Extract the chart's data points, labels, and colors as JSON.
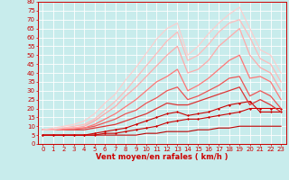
{
  "background_color": "#c8ecec",
  "grid_color": "#ffffff",
  "xlabel": "Vent moyen/en rafales ( km/h )",
  "xlabel_color": "#cc0000",
  "xlabel_fontsize": 6,
  "tick_color": "#cc0000",
  "tick_fontsize": 5,
  "xlim": [
    -0.5,
    23.5
  ],
  "ylim": [
    0,
    80
  ],
  "yticks": [
    0,
    5,
    10,
    15,
    20,
    25,
    30,
    35,
    40,
    45,
    50,
    55,
    60,
    65,
    70,
    75,
    80
  ],
  "xticks": [
    0,
    1,
    2,
    3,
    4,
    5,
    6,
    7,
    8,
    9,
    10,
    11,
    12,
    13,
    14,
    15,
    16,
    17,
    18,
    19,
    20,
    21,
    22,
    23
  ],
  "lines": [
    {
      "x": [
        0,
        1,
        2,
        3,
        4,
        5,
        6,
        7,
        8,
        9,
        10,
        11,
        12,
        13,
        14,
        15,
        16,
        17,
        18,
        19,
        20,
        21,
        22,
        23
      ],
      "y": [
        5,
        5,
        5,
        5,
        5,
        5,
        5,
        5,
        5,
        5,
        6,
        6,
        7,
        7,
        7,
        8,
        8,
        9,
        9,
        10,
        10,
        10,
        10,
        10
      ],
      "color": "#bb0000",
      "lw": 0.8,
      "marker": null,
      "ms": 0
    },
    {
      "x": [
        0,
        1,
        2,
        3,
        4,
        5,
        6,
        7,
        8,
        9,
        10,
        11,
        12,
        13,
        14,
        15,
        16,
        17,
        18,
        19,
        20,
        21,
        22,
        23
      ],
      "y": [
        5,
        5,
        5,
        5,
        5,
        5,
        6,
        6,
        7,
        8,
        9,
        10,
        12,
        13,
        14,
        14,
        15,
        16,
        17,
        18,
        20,
        20,
        20,
        20
      ],
      "color": "#cc0000",
      "lw": 0.8,
      "marker": "D",
      "ms": 1.5
    },
    {
      "x": [
        0,
        1,
        2,
        3,
        4,
        5,
        6,
        7,
        8,
        9,
        10,
        11,
        12,
        13,
        14,
        15,
        16,
        17,
        18,
        19,
        20,
        21,
        22,
        23
      ],
      "y": [
        5,
        5,
        5,
        5,
        5,
        6,
        7,
        8,
        9,
        11,
        13,
        15,
        17,
        18,
        16,
        17,
        18,
        20,
        22,
        23,
        24,
        18,
        18,
        18
      ],
      "color": "#cc0000",
      "lw": 0.8,
      "marker": "D",
      "ms": 1.5
    },
    {
      "x": [
        0,
        1,
        2,
        3,
        4,
        5,
        6,
        7,
        8,
        9,
        10,
        11,
        12,
        13,
        14,
        15,
        16,
        17,
        18,
        19,
        20,
        21,
        22,
        23
      ],
      "y": [
        8,
        8,
        8,
        8,
        8,
        9,
        10,
        11,
        13,
        15,
        17,
        20,
        23,
        22,
        22,
        24,
        26,
        28,
        30,
        32,
        22,
        25,
        22,
        18
      ],
      "color": "#dd3333",
      "lw": 0.9,
      "marker": null,
      "ms": 0
    },
    {
      "x": [
        0,
        1,
        2,
        3,
        4,
        5,
        6,
        7,
        8,
        9,
        10,
        11,
        12,
        13,
        14,
        15,
        16,
        17,
        18,
        19,
        20,
        21,
        22,
        23
      ],
      "y": [
        8,
        8,
        8,
        8,
        9,
        10,
        12,
        14,
        17,
        19,
        23,
        26,
        30,
        32,
        25,
        27,
        30,
        33,
        37,
        38,
        27,
        30,
        27,
        20
      ],
      "color": "#ee5555",
      "lw": 0.9,
      "marker": null,
      "ms": 0
    },
    {
      "x": [
        0,
        1,
        2,
        3,
        4,
        5,
        6,
        7,
        8,
        9,
        10,
        11,
        12,
        13,
        14,
        15,
        16,
        17,
        18,
        19,
        20,
        21,
        22,
        23
      ],
      "y": [
        8,
        8,
        8,
        9,
        9,
        11,
        14,
        17,
        21,
        25,
        30,
        35,
        38,
        42,
        30,
        33,
        37,
        42,
        47,
        50,
        37,
        38,
        35,
        25
      ],
      "color": "#ff7777",
      "lw": 0.9,
      "marker": null,
      "ms": 0
    },
    {
      "x": [
        0,
        1,
        2,
        3,
        4,
        5,
        6,
        7,
        8,
        9,
        10,
        11,
        12,
        13,
        14,
        15,
        16,
        17,
        18,
        19,
        20,
        21,
        22,
        23
      ],
      "y": [
        8,
        8,
        9,
        9,
        10,
        13,
        17,
        21,
        27,
        32,
        38,
        44,
        50,
        55,
        40,
        42,
        47,
        55,
        60,
        65,
        50,
        43,
        40,
        30
      ],
      "color": "#ffaaaa",
      "lw": 0.9,
      "marker": null,
      "ms": 0
    },
    {
      "x": [
        0,
        1,
        2,
        3,
        4,
        5,
        6,
        7,
        8,
        9,
        10,
        11,
        12,
        13,
        14,
        15,
        16,
        17,
        18,
        19,
        20,
        21,
        22,
        23
      ],
      "y": [
        8,
        8,
        9,
        10,
        11,
        14,
        19,
        24,
        30,
        37,
        44,
        51,
        58,
        63,
        47,
        50,
        56,
        63,
        68,
        70,
        60,
        48,
        45,
        35
      ],
      "color": "#ffbbbb",
      "lw": 0.9,
      "marker": null,
      "ms": 0
    },
    {
      "x": [
        0,
        1,
        2,
        3,
        4,
        5,
        6,
        7,
        8,
        9,
        10,
        11,
        12,
        13,
        14,
        15,
        16,
        17,
        18,
        19,
        20,
        21,
        22,
        23
      ],
      "y": [
        8,
        9,
        10,
        11,
        13,
        17,
        23,
        28,
        36,
        43,
        51,
        59,
        65,
        68,
        50,
        55,
        62,
        68,
        73,
        77,
        65,
        53,
        50,
        40
      ],
      "color": "#ffcccc",
      "lw": 0.8,
      "marker": null,
      "ms": 0
    }
  ]
}
